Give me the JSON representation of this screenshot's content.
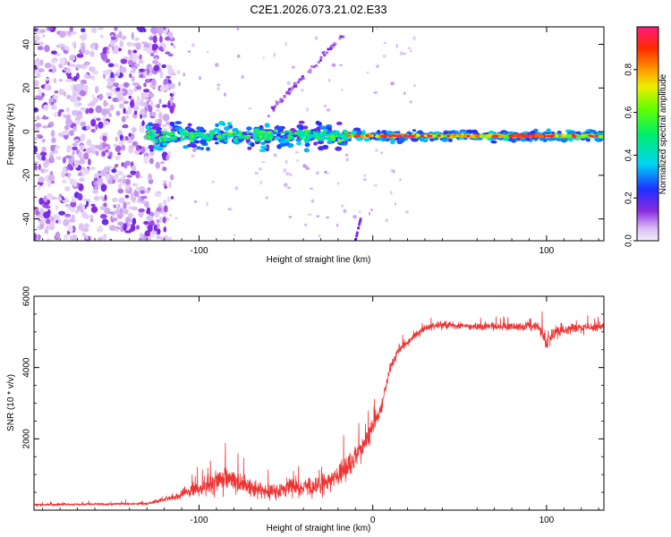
{
  "figure_title": "C2E1.2026.073.21.02.E33",
  "colors": {
    "snr_line": "#ee3333",
    "axis": "#000000",
    "spectro_bg": "#ffffff"
  },
  "chart_data": [
    {
      "type": "heatmap",
      "name": "spectrogram",
      "title": "C2E1.2026.073.21.02.E33",
      "xlabel": "Height of straight line (km)",
      "ylabel": "Frequency (Hz)",
      "xlim": [
        -195,
        133
      ],
      "ylim": [
        -50,
        48
      ],
      "x_ticks": [
        -100,
        0,
        100
      ],
      "x_tick_labels": [
        "-100",
        "",
        "100"
      ],
      "y_ticks": [
        -40,
        -20,
        0,
        20,
        40
      ],
      "y_tick_labels": [
        "-40",
        "-20",
        "0",
        "20",
        "40"
      ],
      "colorbar": {
        "label": "Normalized spectral amplitude",
        "range": [
          0,
          1
        ],
        "ticks": [
          0,
          0.2,
          0.4,
          0.6,
          0.8
        ],
        "tick_labels": [
          "0.0",
          "0.2",
          "0.4",
          "0.6",
          "0.8"
        ]
      },
      "features": {
        "noise_region_x": [
          -195,
          -115
        ],
        "carrier_center_hz": -2,
        "carrier_start_km": -130,
        "peak_region_km": [
          80,
          100
        ],
        "drift_track_km": [
          -60,
          -15
        ]
      }
    },
    {
      "type": "line",
      "name": "snr",
      "xlabel": "Height of straight line (km)",
      "ylabel": "SNR (10 * v/v)",
      "xlim": [
        -195,
        133
      ],
      "ylim": [
        0,
        6000
      ],
      "x_ticks": [
        -100,
        0,
        100
      ],
      "x_tick_labels": [
        "-100",
        "0",
        "100"
      ],
      "y_ticks": [
        2000,
        4000,
        6000
      ],
      "y_tick_labels": [
        "2000",
        "4000",
        "6000"
      ],
      "series": [
        {
          "name": "SNR",
          "control_points_x": [
            -195,
            -130,
            -115,
            -100,
            -85,
            -75,
            -60,
            -45,
            -35,
            -25,
            -15,
            -10,
            -5,
            0,
            5,
            10,
            15,
            20,
            25,
            30,
            40,
            60,
            80,
            95,
            100,
            105,
            115,
            133
          ],
          "control_points_y": [
            150,
            180,
            350,
            600,
            900,
            700,
            500,
            650,
            600,
            800,
            1200,
            1500,
            1800,
            2300,
            2900,
            4000,
            4500,
            4700,
            4950,
            5100,
            5200,
            5150,
            5150,
            5150,
            4700,
            5000,
            5100,
            5150
          ],
          "noise_amplitude": [
            60,
            60,
            150,
            400,
            700,
            500,
            350,
            400,
            450,
            500,
            600,
            600,
            600,
            500,
            400,
            300,
            250,
            200,
            180,
            180,
            180,
            180,
            200,
            250,
            500,
            300,
            250,
            250
          ]
        }
      ]
    }
  ]
}
